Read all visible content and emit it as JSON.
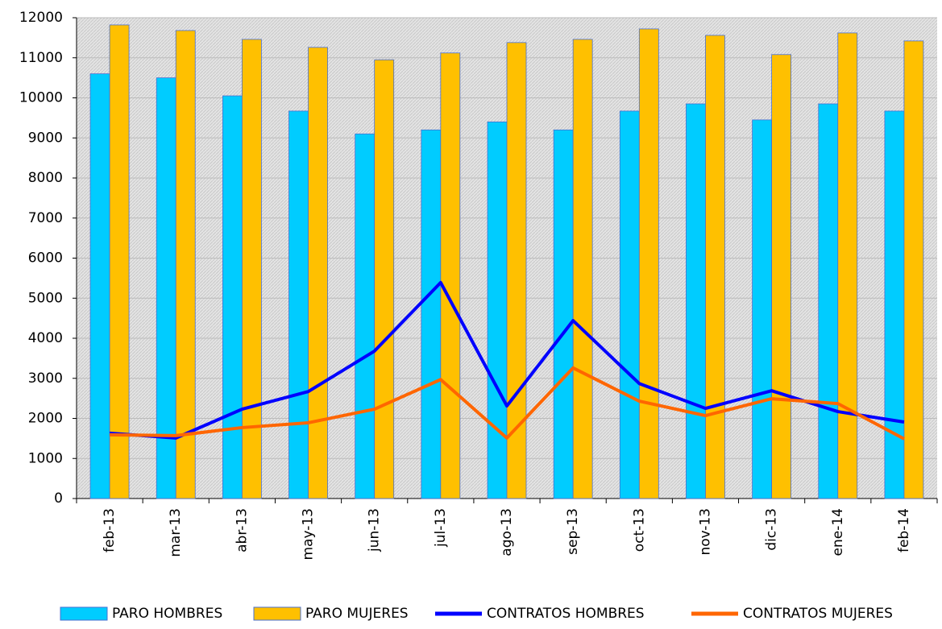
{
  "chart_data": {
    "type": "bar",
    "categories": [
      "feb-13",
      "mar-13",
      "abr-13",
      "may-13",
      "jun-13",
      "jul-13",
      "ago-13",
      "sep-13",
      "oct-13",
      "nov-13",
      "dic-13",
      "ene-14",
      "feb-14"
    ],
    "series": [
      {
        "name": "PARO HOMBRES",
        "type": "bar",
        "color": "#00ccff",
        "values": [
          10600,
          10500,
          10050,
          9670,
          9100,
          9200,
          9400,
          9200,
          9670,
          9850,
          9450,
          9850,
          9670
        ]
      },
      {
        "name": "PARO MUJERES",
        "type": "bar",
        "color": "#ffc000",
        "values": [
          11820,
          11680,
          11460,
          11260,
          10950,
          11120,
          11380,
          11460,
          11720,
          11560,
          11080,
          11620,
          11420
        ]
      },
      {
        "name": "CONTRATOS HOMBRES",
        "type": "line",
        "color": "#0000ff",
        "values": [
          1630,
          1510,
          2230,
          2670,
          3680,
          5390,
          2310,
          4440,
          2870,
          2250,
          2690,
          2170,
          1910
        ]
      },
      {
        "name": "CONTRATOS MUJERES",
        "type": "line",
        "color": "#ff6600",
        "values": [
          1590,
          1570,
          1770,
          1890,
          2230,
          2970,
          1510,
          3260,
          2430,
          2070,
          2490,
          2370,
          1490
        ]
      }
    ],
    "ylim": [
      0,
      12000
    ],
    "yticks": [
      0,
      1000,
      2000,
      3000,
      4000,
      5000,
      6000,
      7000,
      8000,
      9000,
      10000,
      11000,
      12000
    ],
    "grid": true
  }
}
